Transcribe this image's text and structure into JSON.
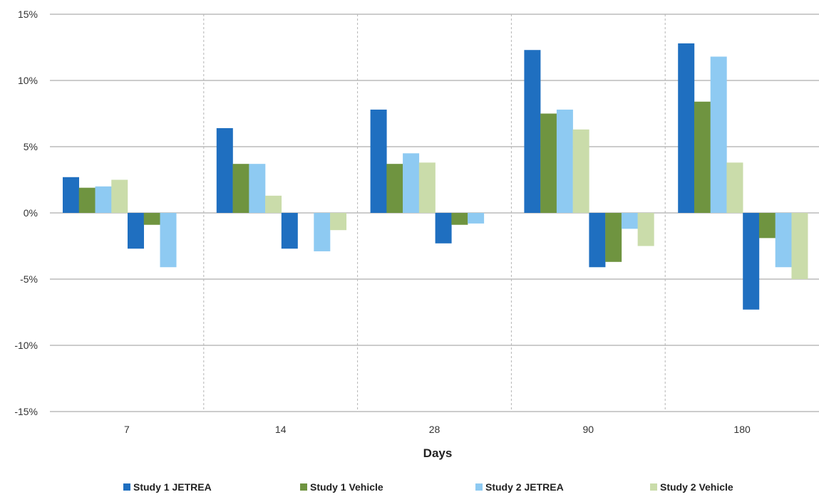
{
  "chart_data": {
    "type": "bar",
    "title": "",
    "xlabel": "Days",
    "ylabel": "",
    "ylim": [
      -0.15,
      0.15
    ],
    "ytick_values": [
      -0.15,
      -0.1,
      -0.05,
      0,
      0.05,
      0.1,
      0.15
    ],
    "ytick_labels": [
      "-15%",
      "-10%",
      "-5%",
      "0%",
      "5%",
      "10%",
      "15%"
    ],
    "categories": [
      "7",
      "14",
      "28",
      "90",
      "180"
    ],
    "grid": true,
    "vertical_separators": "dotted",
    "legend_position": "bottom",
    "series": [
      {
        "name": "Study 1  JETREA",
        "color": "#1f6fc0",
        "positive": [
          0.027,
          0.064,
          0.078,
          0.123,
          0.128
        ],
        "negative": [
          -0.027,
          -0.027,
          -0.023,
          -0.041,
          -0.073
        ]
      },
      {
        "name": "Study 1 Vehicle",
        "color": "#6f9440",
        "positive": [
          0.019,
          0.037,
          0.037,
          0.075,
          0.084
        ],
        "negative": [
          -0.009,
          0,
          -0.009,
          -0.037,
          -0.019
        ]
      },
      {
        "name": "Study 2 JETREA",
        "color": "#8ecaf2",
        "positive": [
          0.02,
          0.037,
          0.045,
          0.078,
          0.118
        ],
        "negative": [
          -0.041,
          -0.029,
          -0.008,
          -0.012,
          -0.041
        ]
      },
      {
        "name": "Study 2 Vehicle",
        "color": "#cadcaa",
        "positive": [
          0.025,
          0.013,
          0.038,
          0.063,
          0.038
        ],
        "negative": [
          0,
          -0.013,
          0,
          -0.025,
          -0.05
        ]
      }
    ]
  }
}
